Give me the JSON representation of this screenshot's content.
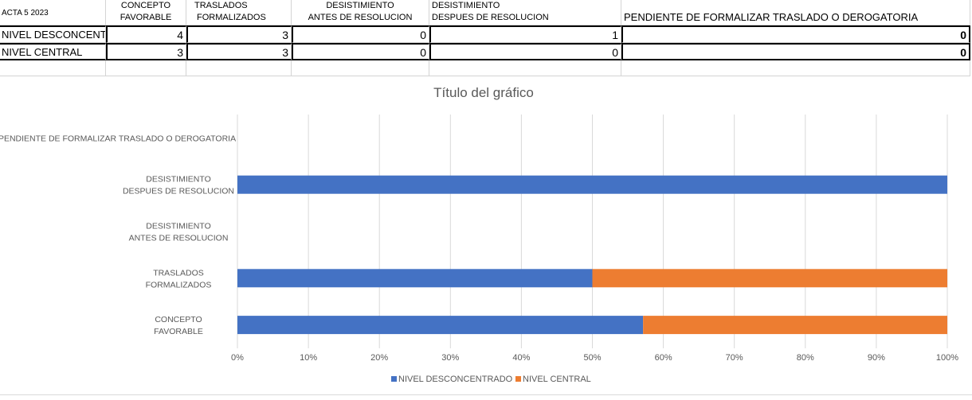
{
  "sheet": {
    "header": {
      "corner": "ACTA 5 2023",
      "cols": [
        [
          "CONCEPTO",
          "FAVORABLE"
        ],
        [
          "TRASLADOS",
          "FORMALIZADOS"
        ],
        [
          "DESISTIMIENTO",
          "ANTES DE RESOLUCION"
        ],
        [
          "DESISTIMIENTO",
          "DESPUES DE RESOLUCION"
        ],
        [
          "PENDIENTE DE FORMALIZAR TRASLADO O DEROGATORIA"
        ]
      ]
    },
    "rows": [
      {
        "label": "NIVEL DESCONCENTR",
        "values": [
          "4",
          "3",
          "0",
          "1",
          "0"
        ]
      },
      {
        "label": "NIVEL CENTRAL",
        "values": [
          "3",
          "3",
          "0",
          "0",
          "0"
        ]
      }
    ]
  },
  "chart_data": {
    "type": "bar",
    "orientation": "horizontal",
    "stacked": "percent",
    "title": "Título del gráfico",
    "categories": [
      "CONCEPTO FAVORABLE",
      "TRASLADOS FORMALIZADOS",
      "DESISTIMIENTO ANTES DE RESOLUCION",
      "DESISTIMIENTO DESPUES DE RESOLUCION",
      "PENDIENTE DE FORMALIZAR TRASLADO O DEROGATORIA"
    ],
    "category_label_lines": [
      [
        "CONCEPTO",
        "FAVORABLE"
      ],
      [
        "TRASLADOS",
        "FORMALIZADOS"
      ],
      [
        "DESISTIMIENTO",
        "ANTES DE RESOLUCION"
      ],
      [
        "DESISTIMIENTO",
        "DESPUES DE RESOLUCION"
      ],
      [
        "PENDIENTE DE FORMALIZAR TRASLADO O DEROGATORIA"
      ]
    ],
    "series": [
      {
        "name": "NIVEL DESCONCENTRADO",
        "color": "#4472C4",
        "values": [
          4,
          3,
          0,
          1,
          0
        ]
      },
      {
        "name": "NIVEL CENTRAL",
        "color": "#ED7D31",
        "values": [
          3,
          3,
          0,
          0,
          0
        ]
      }
    ],
    "x_ticks": [
      "0%",
      "10%",
      "20%",
      "30%",
      "40%",
      "50%",
      "60%",
      "70%",
      "80%",
      "90%",
      "100%"
    ],
    "xlim": [
      0,
      100
    ],
    "grid": true,
    "legend": "bottom"
  }
}
